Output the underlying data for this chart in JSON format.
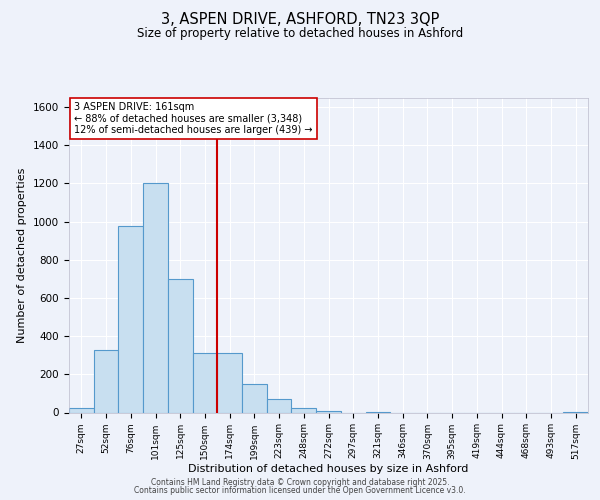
{
  "title": "3, ASPEN DRIVE, ASHFORD, TN23 3QP",
  "subtitle": "Size of property relative to detached houses in Ashford",
  "xlabel": "Distribution of detached houses by size in Ashford",
  "ylabel": "Number of detached properties",
  "bar_labels": [
    "27sqm",
    "52sqm",
    "76sqm",
    "101sqm",
    "125sqm",
    "150sqm",
    "174sqm",
    "199sqm",
    "223sqm",
    "248sqm",
    "272sqm",
    "297sqm",
    "321sqm",
    "346sqm",
    "370sqm",
    "395sqm",
    "419sqm",
    "444sqm",
    "468sqm",
    "493sqm",
    "517sqm"
  ],
  "bar_values": [
    25,
    325,
    975,
    1200,
    700,
    310,
    310,
    150,
    70,
    25,
    10,
    0,
    5,
    0,
    0,
    0,
    0,
    0,
    0,
    0,
    5
  ],
  "bar_color": "#c8dff0",
  "bar_edge_color": "#5599cc",
  "reference_line_color": "#cc0000",
  "annotation_title": "3 ASPEN DRIVE: 161sqm",
  "annotation_line1": "← 88% of detached houses are smaller (3,348)",
  "annotation_line2": "12% of semi-detached houses are larger (439) →",
  "annotation_box_facecolor": "#ffffff",
  "annotation_border_color": "#cc0000",
  "ylim": [
    0,
    1650
  ],
  "yticks": [
    0,
    200,
    400,
    600,
    800,
    1000,
    1200,
    1400,
    1600
  ],
  "background_color": "#eef2fa",
  "grid_color": "#ffffff",
  "footer1": "Contains HM Land Registry data © Crown copyright and database right 2025.",
  "footer2": "Contains public sector information licensed under the Open Government Licence v3.0."
}
